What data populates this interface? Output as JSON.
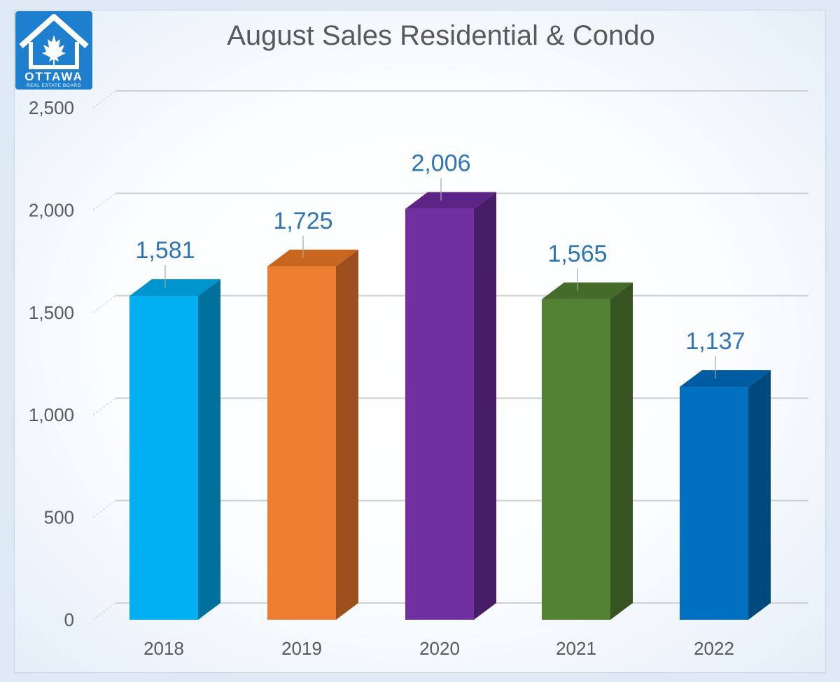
{
  "logo": {
    "word": "OTTAWA",
    "subtitle": "REAL ESTATE BOARD",
    "icon": "maple-leaf-house-icon"
  },
  "chart_data": {
    "type": "bar",
    "title": "August Sales Residential & Condo",
    "xlabel": "",
    "ylabel": "",
    "categories": [
      "2018",
      "2019",
      "2020",
      "2021",
      "2022"
    ],
    "values": [
      1581,
      1725,
      2006,
      1565,
      1137
    ],
    "data_labels": [
      "1,581",
      "1,725",
      "2,006",
      "1,565",
      "1,137"
    ],
    "yticks": [
      "0",
      "500",
      "1,000",
      "1,500",
      "2,000",
      "2,500"
    ],
    "ylim": [
      0,
      2500
    ],
    "grid": true,
    "legend": "none",
    "style": "3d-column",
    "bar_colors": [
      "#00b0f0",
      "#ed7d31",
      "#7030a0",
      "#548235",
      "#0070c0"
    ],
    "bar_side_colors": [
      "#00719c",
      "#9a4f1d",
      "#471d68",
      "#365321",
      "#00497c"
    ],
    "bar_top_colors": [
      "#0095cf",
      "#c8651f",
      "#5d2487",
      "#456b2a",
      "#005ca0"
    ],
    "label_color": "#2e75b6",
    "axis_text_color": "#595959"
  }
}
